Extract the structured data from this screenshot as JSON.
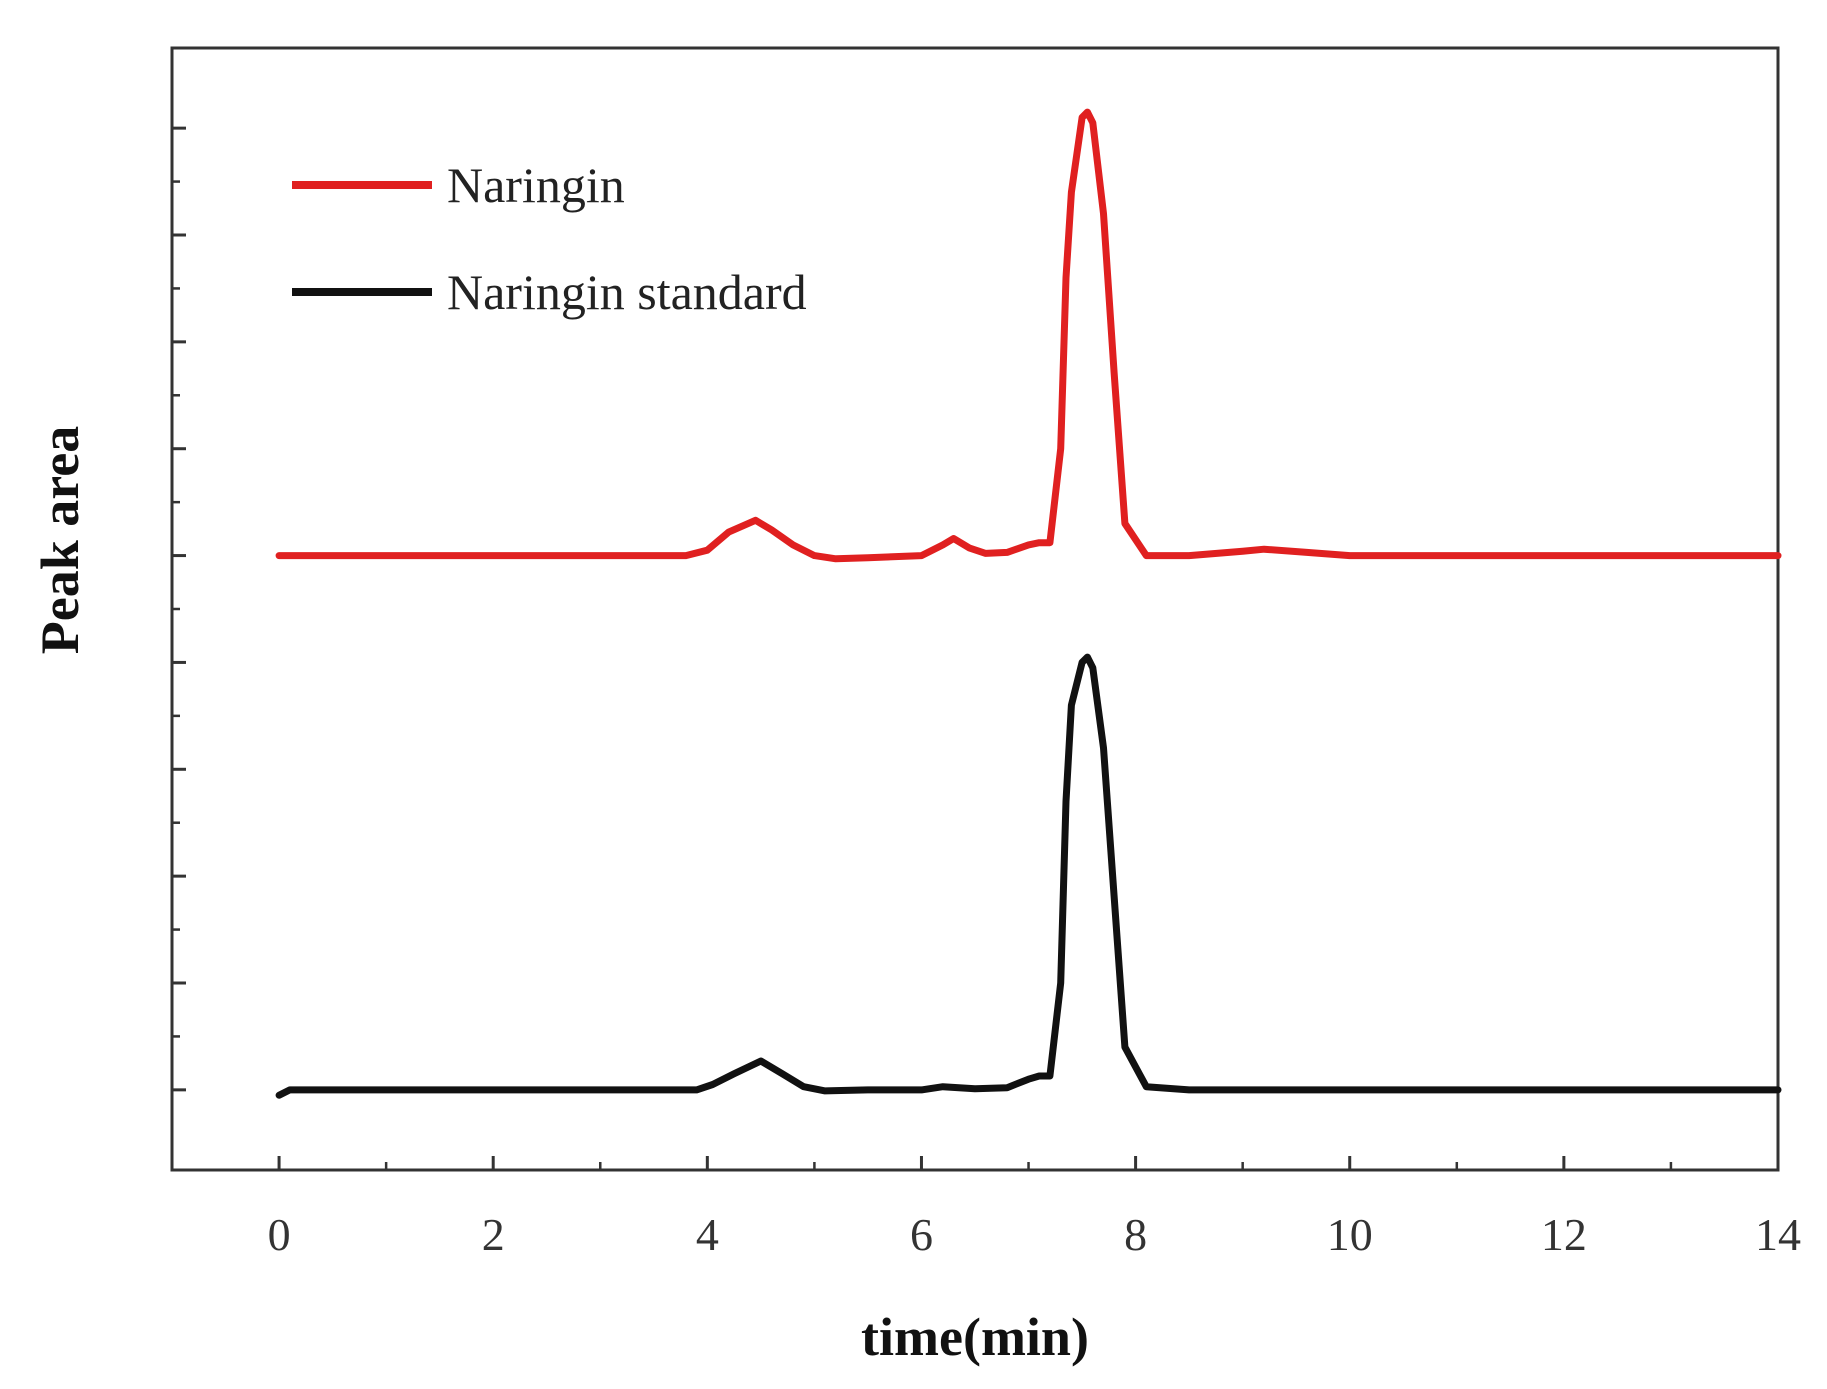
{
  "chart_data": {
    "type": "line",
    "title": "",
    "xlabel": "time(min)",
    "ylabel": "Peak area",
    "xlim": [
      -1,
      14
    ],
    "ylim": [
      -0.75,
      9.75
    ],
    "xticks": [
      0,
      2,
      4,
      6,
      8,
      10,
      12,
      14
    ],
    "xtick_labels": [
      "0",
      "2",
      "4",
      "6",
      "8",
      "10",
      "12",
      "14"
    ],
    "yticks_unlabeled": true,
    "grid": false,
    "legend": "top-left",
    "series": [
      {
        "name": "Naringin",
        "color": "#e02020",
        "x": [
          0,
          1,
          2,
          3,
          3.8,
          4.0,
          4.2,
          4.45,
          4.6,
          4.8,
          5.0,
          5.2,
          5.5,
          6.0,
          6.2,
          6.3,
          6.45,
          6.6,
          6.8,
          7.0,
          7.1,
          7.2,
          7.3,
          7.35,
          7.4,
          7.5,
          7.55,
          7.6,
          7.7,
          7.8,
          7.9,
          8.1,
          8.5,
          9.0,
          9.2,
          9.6,
          10.0,
          11.0,
          12.0,
          13.0,
          14.0
        ],
        "y": [
          5.0,
          5.0,
          5.0,
          5.0,
          5.0,
          5.05,
          5.22,
          5.33,
          5.24,
          5.1,
          5.0,
          4.97,
          4.98,
          5.0,
          5.1,
          5.16,
          5.07,
          5.02,
          5.03,
          5.1,
          5.12,
          5.12,
          6.0,
          7.6,
          8.4,
          9.1,
          9.15,
          9.05,
          8.2,
          6.7,
          5.3,
          5.0,
          5.0,
          5.04,
          5.06,
          5.03,
          5.0,
          5.0,
          5.0,
          5.0,
          5.0
        ]
      },
      {
        "name": "Naringin standard",
        "color": "#111111",
        "x": [
          0,
          0.1,
          1,
          2,
          3,
          3.9,
          4.05,
          4.25,
          4.5,
          4.7,
          4.9,
          5.1,
          5.5,
          6.0,
          6.2,
          6.5,
          6.8,
          7.0,
          7.1,
          7.2,
          7.3,
          7.35,
          7.4,
          7.5,
          7.55,
          7.6,
          7.7,
          7.8,
          7.9,
          8.1,
          8.5,
          9.0,
          10.0,
          11.0,
          12.0,
          13.0,
          14.0
        ],
        "y": [
          -0.05,
          0.0,
          0.0,
          0.0,
          0.0,
          0.0,
          0.05,
          0.15,
          0.27,
          0.15,
          0.03,
          -0.01,
          0.0,
          0.0,
          0.03,
          0.01,
          0.02,
          0.1,
          0.13,
          0.13,
          1.0,
          2.7,
          3.6,
          4.0,
          4.05,
          3.95,
          3.2,
          1.8,
          0.4,
          0.03,
          0.0,
          0.0,
          0.0,
          0.0,
          0.0,
          0.0,
          0.0
        ]
      }
    ]
  }
}
